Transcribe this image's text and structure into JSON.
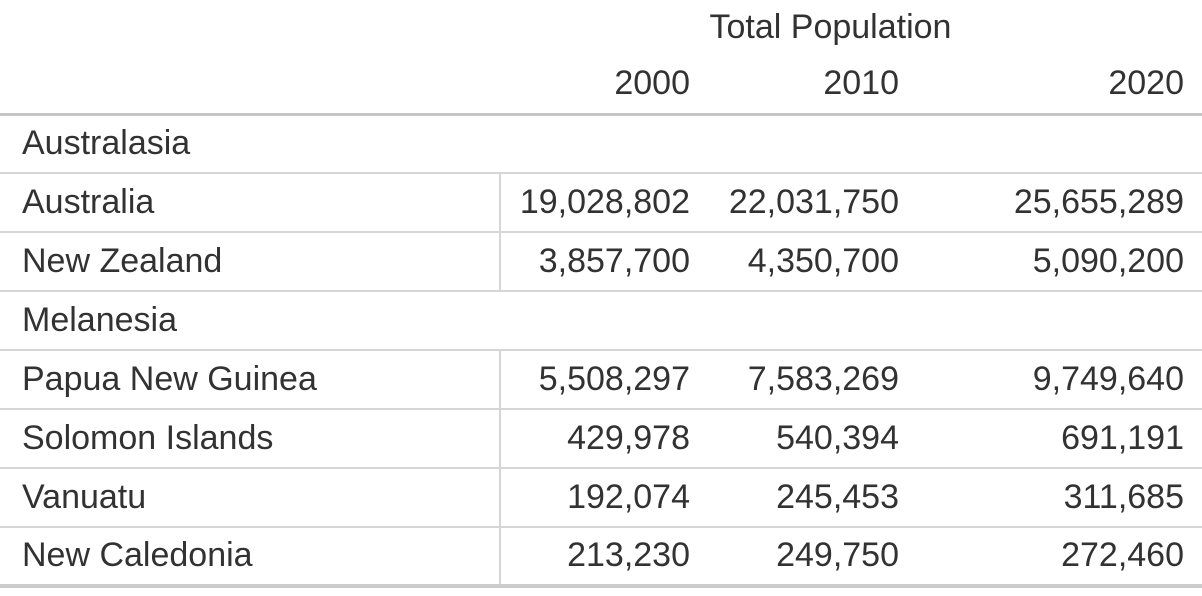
{
  "chart_data": {
    "type": "table",
    "title": "Total Population",
    "categories": [
      "2000",
      "2010",
      "2020"
    ],
    "groups": [
      {
        "label": "Australasia",
        "rows": [
          {
            "label": "Australia",
            "values": [
              19028802,
              22031750,
              25655289
            ],
            "display": [
              "19,028,802",
              "22,031,750",
              "25,655,289"
            ]
          },
          {
            "label": "New Zealand",
            "values": [
              3857700,
              4350700,
              5090200
            ],
            "display": [
              "3,857,700",
              "4,350,700",
              "5,090,200"
            ]
          }
        ]
      },
      {
        "label": "Melanesia",
        "rows": [
          {
            "label": "Papua New Guinea",
            "values": [
              5508297,
              7583269,
              9749640
            ],
            "display": [
              "5,508,297",
              "7,583,269",
              "9,749,640"
            ]
          },
          {
            "label": "Solomon Islands",
            "values": [
              429978,
              540394,
              691191
            ],
            "display": [
              "429,978",
              "540,394",
              "691,191"
            ]
          },
          {
            "label": "Vanuatu",
            "values": [
              192074,
              245453,
              311685
            ],
            "display": [
              "192,074",
              "245,453",
              "311,685"
            ]
          },
          {
            "label": "New Caledonia",
            "values": [
              213230,
              249750,
              272460
            ],
            "display": [
              "213,230",
              "249,750",
              "272,460"
            ]
          }
        ]
      }
    ],
    "layout": {
      "grid": "row-separators-only",
      "value_alignment": "right",
      "header_alignment": "right"
    },
    "colors": {
      "text": "#323232",
      "separator_light": "#d6d6d6",
      "separator_strong": "#c6c6c6",
      "background": "#ffffff"
    }
  }
}
